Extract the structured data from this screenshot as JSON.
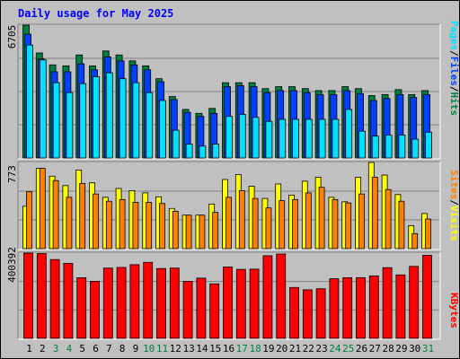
{
  "title": "Daily usage for May 2025",
  "colors": {
    "hits": "#008040",
    "files": "#0040ff",
    "pages": "#00e0ff",
    "visits": "#ffff00",
    "sites": "#ff8000",
    "kbytes": "#ff0000",
    "title": "#0000ff",
    "weekend": "#008040",
    "weekday": "#000000"
  },
  "chart_data": [
    {
      "type": "bar",
      "name": "hits-files-pages",
      "categories": [
        "1",
        "2",
        "3",
        "4",
        "5",
        "6",
        "7",
        "8",
        "9",
        "10",
        "11",
        "12",
        "13",
        "14",
        "15",
        "16",
        "17",
        "18",
        "19",
        "20",
        "21",
        "22",
        "23",
        "24",
        "25",
        "26",
        "27",
        "28",
        "29",
        "30",
        "31"
      ],
      "ymax_label": "6705",
      "ylim": [
        0,
        6705
      ],
      "legend": [
        "Pages",
        "Files",
        "Hits"
      ],
      "series": [
        {
          "name": "Hits",
          "values": [
            6705,
            5300,
            4700,
            4650,
            5200,
            4650,
            5400,
            5200,
            4900,
            4650,
            4000,
            3100,
            2450,
            2250,
            2500,
            3800,
            3800,
            3800,
            3500,
            3600,
            3600,
            3500,
            3400,
            3400,
            3600,
            3500,
            3150,
            3200,
            3450,
            3200,
            3400
          ]
        },
        {
          "name": "Files",
          "values": [
            6250,
            5000,
            4350,
            4350,
            4750,
            4450,
            5100,
            4900,
            4700,
            4450,
            3850,
            2950,
            2300,
            2100,
            2250,
            3600,
            3650,
            3600,
            3300,
            3400,
            3400,
            3300,
            3200,
            3200,
            3400,
            3250,
            2900,
            3000,
            3200,
            3050,
            3200
          ]
        },
        {
          "name": "Pages",
          "values": [
            5700,
            4950,
            3800,
            3300,
            3750,
            4100,
            4300,
            4000,
            3800,
            3300,
            2900,
            1400,
            700,
            600,
            700,
            2100,
            2200,
            2050,
            1850,
            1950,
            1950,
            1950,
            1950,
            1950,
            2450,
            1350,
            1100,
            1150,
            1150,
            950,
            1300
          ]
        }
      ]
    },
    {
      "type": "bar",
      "name": "visits-sites",
      "categories": [
        "1",
        "2",
        "3",
        "4",
        "5",
        "6",
        "7",
        "8",
        "9",
        "10",
        "11",
        "12",
        "13",
        "14",
        "15",
        "16",
        "17",
        "18",
        "19",
        "20",
        "21",
        "22",
        "23",
        "24",
        "25",
        "26",
        "27",
        "28",
        "29",
        "30",
        "31"
      ],
      "ymax_label": "773",
      "ylim": [
        0,
        773
      ],
      "legend": [
        "Sites",
        "Visits"
      ],
      "series": [
        {
          "name": "Visits",
          "values": [
            380,
            720,
            650,
            565,
            705,
            590,
            460,
            540,
            520,
            500,
            465,
            360,
            300,
            300,
            400,
            620,
            665,
            560,
            450,
            580,
            480,
            605,
            640,
            460,
            420,
            640,
            773,
            660,
            485,
            205,
            315
          ]
        },
        {
          "name": "Sites",
          "values": [
            510,
            720,
            610,
            460,
            585,
            490,
            425,
            440,
            415,
            415,
            405,
            335,
            300,
            300,
            325,
            460,
            520,
            450,
            365,
            430,
            440,
            500,
            550,
            440,
            410,
            490,
            640,
            530,
            425,
            135,
            265
          ]
        }
      ]
    },
    {
      "type": "bar",
      "name": "kbytes",
      "categories": [
        "1",
        "2",
        "3",
        "4",
        "5",
        "6",
        "7",
        "8",
        "9",
        "10",
        "11",
        "12",
        "13",
        "14",
        "15",
        "16",
        "17",
        "18",
        "19",
        "20",
        "21",
        "22",
        "23",
        "24",
        "25",
        "26",
        "27",
        "28",
        "29",
        "30",
        "31"
      ],
      "ymax_label": "400392",
      "ylim": [
        0,
        400392
      ],
      "legend": [
        "KBytes"
      ],
      "series": [
        {
          "name": "KBytes",
          "values": [
            400392,
            398000,
            370000,
            352000,
            285000,
            268000,
            330000,
            333000,
            346000,
            357000,
            328000,
            330000,
            268000,
            283000,
            256000,
            335000,
            324000,
            325000,
            388000,
            396000,
            239000,
            228000,
            233000,
            280000,
            285000,
            285000,
            293000,
            332000,
            298000,
            338000,
            390000
          ]
        }
      ]
    }
  ]
}
